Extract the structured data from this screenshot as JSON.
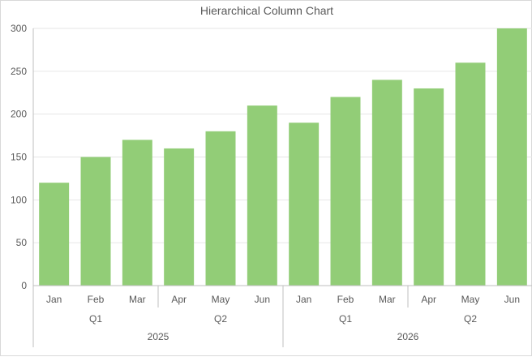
{
  "chart_data": {
    "type": "bar",
    "title": "Hierarchical Column Chart",
    "xlabel": "",
    "ylabel": "",
    "ylim": [
      0,
      300
    ],
    "yticks": [
      0,
      50,
      100,
      150,
      200,
      250,
      300
    ],
    "grid": true,
    "legend": "none",
    "colors": {
      "bar": "#92cd77",
      "grid": "#e6e6e6",
      "axis": "#bfbfbf",
      "text": "#595959"
    },
    "categories": [
      "Jan",
      "Feb",
      "Mar",
      "Apr",
      "May",
      "Jun",
      "Jan",
      "Feb",
      "Mar",
      "Apr",
      "May",
      "Jun"
    ],
    "values": [
      120,
      150,
      170,
      160,
      180,
      210,
      190,
      220,
      240,
      230,
      260,
      300
    ],
    "quarters": [
      {
        "label": "Q1",
        "start": 0,
        "count": 3
      },
      {
        "label": "Q2",
        "start": 3,
        "count": 3
      },
      {
        "label": "Q1",
        "start": 6,
        "count": 3
      },
      {
        "label": "Q2",
        "start": 9,
        "count": 3
      }
    ],
    "years": [
      {
        "label": "2025",
        "start": 0,
        "count": 6
      },
      {
        "label": "2026",
        "start": 6,
        "count": 6
      }
    ]
  }
}
